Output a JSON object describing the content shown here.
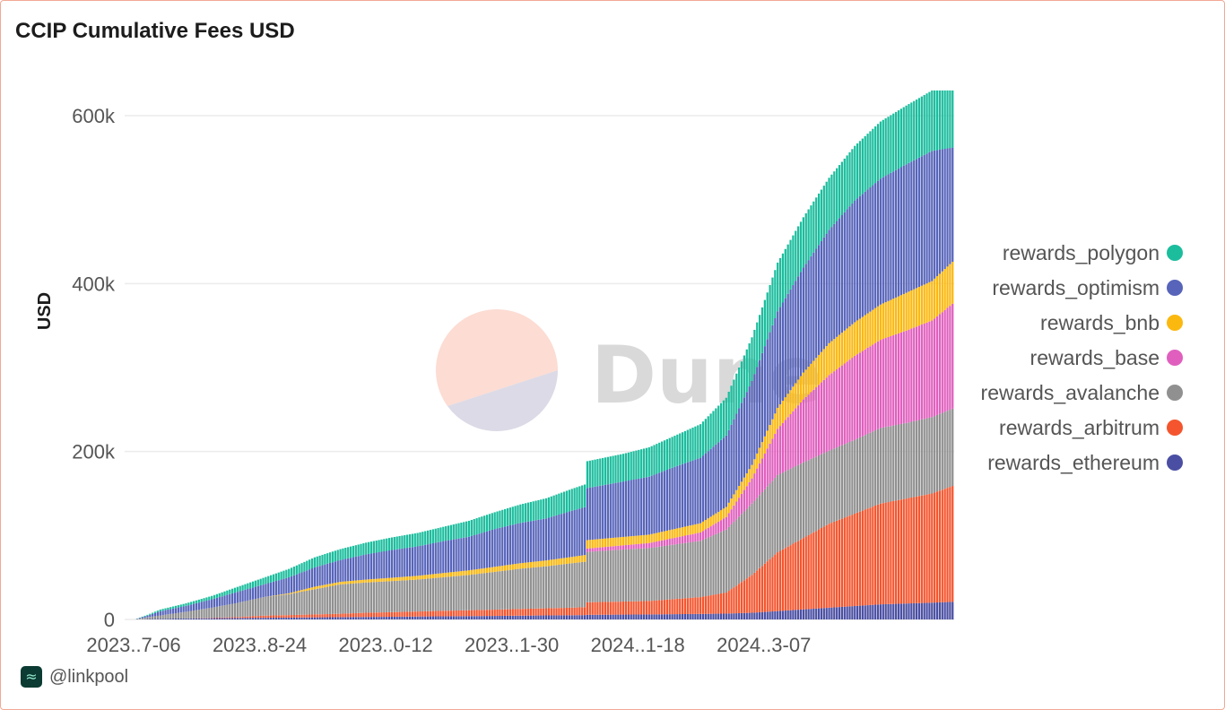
{
  "chart_data": {
    "type": "area",
    "title": "CCIP Cumulative Fees USD",
    "xlabel": "",
    "ylabel": "USD",
    "ylim": [
      0,
      630000
    ],
    "yticks": [
      0,
      200000,
      400000,
      600000
    ],
    "ytick_labels": [
      "0",
      "200k",
      "400k",
      "600k"
    ],
    "xtick_labels": [
      "2023..7-06",
      "2023..8-24",
      "2023..0-12",
      "2023..1-30",
      "2024..1-18",
      "2024..3-07"
    ],
    "xtick_positions": [
      0,
      49,
      98,
      147,
      196,
      245
    ],
    "x": [
      0,
      5,
      10,
      20,
      30,
      40,
      50,
      60,
      70,
      80,
      90,
      100,
      110,
      120,
      130,
      140,
      150,
      160,
      170,
      175,
      176,
      190,
      200,
      210,
      220,
      230,
      240,
      250,
      260,
      270,
      280,
      290,
      300,
      310,
      318
    ],
    "stacked": true,
    "series": [
      {
        "name": "rewards_ethereum",
        "color": "#4a4fa3",
        "values": [
          0,
          500,
          800,
          1200,
          1500,
          1800,
          2000,
          2200,
          2500,
          2800,
          3000,
          3200,
          3500,
          3800,
          4000,
          4200,
          4500,
          4800,
          5000,
          5200,
          5500,
          5800,
          6000,
          6300,
          6600,
          7000,
          8000,
          10000,
          12000,
          14000,
          16000,
          18000,
          19000,
          20000,
          21000
        ]
      },
      {
        "name": "rewards_arbitrum",
        "color": "#f4552e",
        "values": [
          0,
          0,
          0,
          0,
          500,
          1000,
          2500,
          3000,
          3500,
          4000,
          5000,
          5500,
          6000,
          6500,
          7000,
          7500,
          8000,
          8500,
          9000,
          9500,
          15000,
          15500,
          16000,
          18000,
          20000,
          25000,
          45000,
          70000,
          85000,
          100000,
          110000,
          120000,
          125000,
          130000,
          138000
        ]
      },
      {
        "name": "rewards_avalanche",
        "color": "#909090",
        "values": [
          0,
          2000,
          4000,
          8000,
          12000,
          17000,
          22000,
          25000,
          30000,
          35000,
          36000,
          37000,
          38000,
          40000,
          42000,
          45000,
          48000,
          50000,
          53000,
          54000,
          60000,
          62000,
          63000,
          65000,
          67000,
          75000,
          85000,
          92000,
          90000,
          87000,
          88000,
          90000,
          90000,
          91000,
          92000
        ]
      },
      {
        "name": "rewards_base",
        "color": "#e05fbe",
        "values": [
          0,
          0,
          0,
          0,
          0,
          0,
          0,
          0,
          0,
          0,
          0,
          0,
          0,
          0,
          0,
          0,
          0,
          0,
          0,
          0,
          4000,
          5000,
          6000,
          8000,
          10000,
          15000,
          30000,
          55000,
          75000,
          90000,
          100000,
          105000,
          110000,
          115000,
          125000
        ]
      },
      {
        "name": "rewards_bnb",
        "color": "#fbb80f",
        "values": [
          0,
          0,
          0,
          0,
          0,
          0,
          0,
          1000,
          3000,
          3000,
          3500,
          4000,
          4500,
          5000,
          5500,
          6000,
          6500,
          7000,
          7500,
          8000,
          10000,
          10000,
          10000,
          10500,
          11000,
          12000,
          16000,
          25000,
          32000,
          38000,
          40000,
          42000,
          45000,
          47000,
          50000
        ]
      },
      {
        "name": "rewards_optimism",
        "color": "#5764ba",
        "values": [
          0,
          2000,
          5000,
          7000,
          10000,
          13000,
          15000,
          19000,
          23000,
          26000,
          30000,
          33000,
          35000,
          38000,
          40000,
          45000,
          48000,
          50000,
          55000,
          57000,
          62000,
          66000,
          69000,
          74000,
          78000,
          85000,
          100000,
          115000,
          125000,
          135000,
          145000,
          150000,
          153000,
          155000,
          136000
        ]
      },
      {
        "name": "rewards_polygon",
        "color": "#1bbd9d",
        "values": [
          0,
          1000,
          2000,
          3000,
          4000,
          6000,
          8000,
          10000,
          12000,
          13000,
          14000,
          15000,
          16000,
          17000,
          19000,
          20000,
          22000,
          24000,
          26000,
          27000,
          32000,
          33000,
          35000,
          37000,
          40000,
          45000,
          52000,
          58000,
          60000,
          62000,
          65000,
          68000,
          70000,
          72000,
          68000
        ]
      }
    ]
  },
  "legend": {
    "items": [
      {
        "label": "rewards_polygon",
        "color": "#1bbd9d"
      },
      {
        "label": "rewards_optimism",
        "color": "#5764ba"
      },
      {
        "label": "rewards_bnb",
        "color": "#fbb80f"
      },
      {
        "label": "rewards_base",
        "color": "#e05fbe"
      },
      {
        "label": "rewards_avalanche",
        "color": "#909090"
      },
      {
        "label": "rewards_arbitrum",
        "color": "#f4552e"
      },
      {
        "label": "rewards_ethereum",
        "color": "#4a4fa3"
      }
    ]
  },
  "watermark": {
    "text": "Dune"
  },
  "footer": {
    "handle": "@linkpool"
  }
}
